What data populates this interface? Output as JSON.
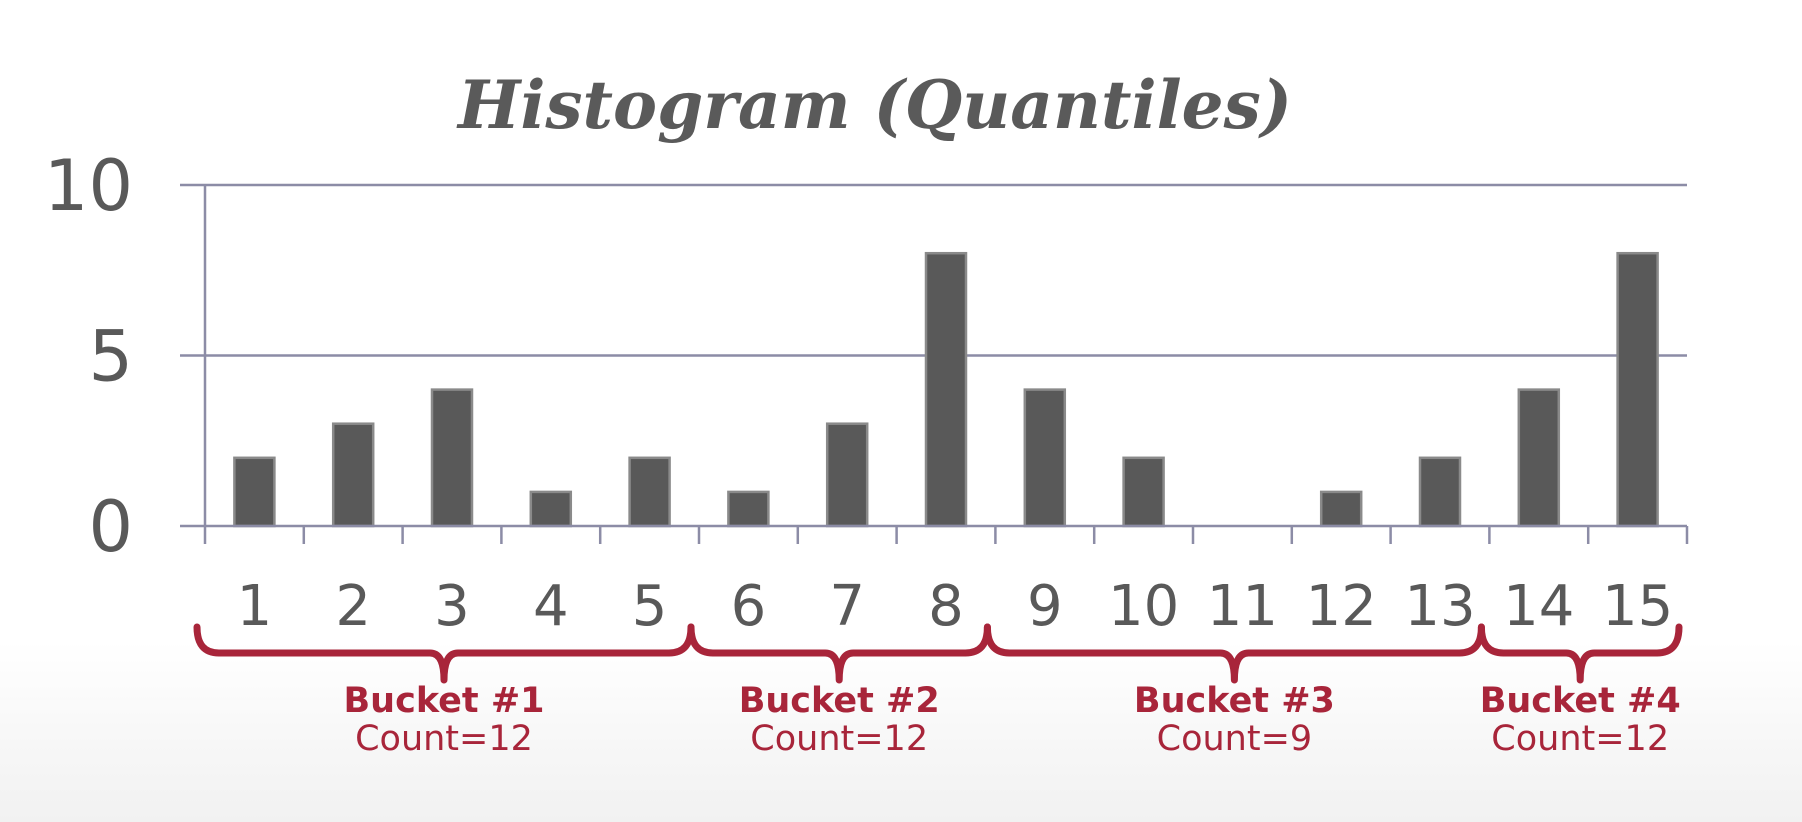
{
  "chart_data": {
    "type": "bar",
    "title": "Histogram (Quantiles)",
    "xlabel": "",
    "ylabel": "",
    "categories": [
      "1",
      "2",
      "3",
      "4",
      "5",
      "6",
      "7",
      "8",
      "9",
      "10",
      "11",
      "12",
      "13",
      "14",
      "15"
    ],
    "values": [
      2,
      3,
      4,
      1,
      2,
      1,
      3,
      8,
      4,
      2,
      0,
      1,
      2,
      4,
      8
    ],
    "ylim": [
      0,
      10
    ],
    "yticks": [
      "0",
      "5",
      "10"
    ],
    "grid": true,
    "bar_color": "#595959",
    "annotation_color": "#a8253a",
    "buckets": [
      {
        "label": "Bucket #1",
        "count_text": "Count=12",
        "start": 1,
        "end": 5
      },
      {
        "label": "Bucket #2",
        "count_text": "Count=12",
        "start": 6,
        "end": 8
      },
      {
        "label": "Bucket #3",
        "count_text": "Count=9",
        "start": 9,
        "end": 13
      },
      {
        "label": "Bucket #4",
        "count_text": "Count=12",
        "start": 14,
        "end": 15
      }
    ]
  }
}
